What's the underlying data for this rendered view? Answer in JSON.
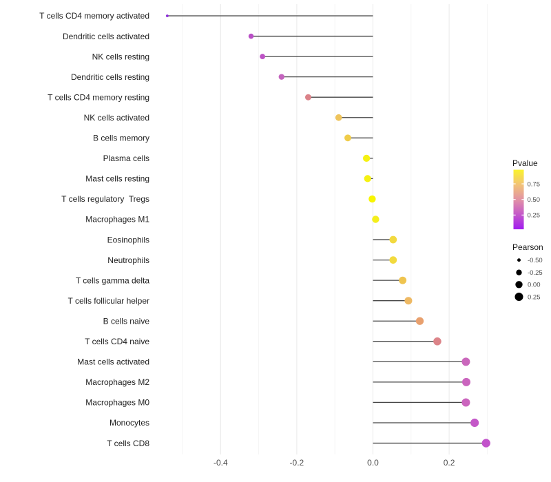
{
  "chart_data": {
    "type": "scatter",
    "style": "horizontal-lollipop",
    "title": "",
    "xlabel": "",
    "ylabel": "",
    "xlim": [
      -0.567,
      0.325
    ],
    "x_ticks": [
      -0.4,
      -0.2,
      0.0,
      0.2
    ],
    "x_tick_labels": [
      "-0.4",
      "-0.2",
      "0.0",
      "0.2"
    ],
    "x_minor_ticks": [
      -0.5,
      -0.3,
      -0.1,
      0.1,
      0.3
    ],
    "grid": true,
    "points": [
      {
        "label": "T cells CD4 memory activated",
        "pearson": -0.54,
        "color": "#8B2BD9"
      },
      {
        "label": "Dendritic cells activated",
        "pearson": -0.32,
        "color": "#B94FC6"
      },
      {
        "label": "NK cells resting",
        "pearson": -0.29,
        "color": "#BD53C5"
      },
      {
        "label": "Dendritic cells resting",
        "pearson": -0.24,
        "color": "#C464BE"
      },
      {
        "label": "T cells CD4 memory resting",
        "pearson": -0.17,
        "color": "#DB8289"
      },
      {
        "label": "NK cells activated",
        "pearson": -0.09,
        "color": "#EFC45C"
      },
      {
        "label": "B cells memory",
        "pearson": -0.066,
        "color": "#F0CC49"
      },
      {
        "label": "Plasma cells",
        "pearson": -0.017,
        "color": "#F5F112"
      },
      {
        "label": "Mast cells resting",
        "pearson": -0.014,
        "color": "#F5F112"
      },
      {
        "label": "T cells regulatory  Tregs",
        "pearson": -0.002,
        "color": "#F8F500"
      },
      {
        "label": "Macrophages M1",
        "pearson": 0.007,
        "color": "#F4EE1C"
      },
      {
        "label": "Eosinophils",
        "pearson": 0.053,
        "color": "#F2D93F"
      },
      {
        "label": "Neutrophils",
        "pearson": 0.053,
        "color": "#F2DA3E"
      },
      {
        "label": "T cells gamma delta",
        "pearson": 0.078,
        "color": "#EFC44F"
      },
      {
        "label": "T cells follicular helper",
        "pearson": 0.093,
        "color": "#EEB964"
      },
      {
        "label": "B cells naive",
        "pearson": 0.123,
        "color": "#E8A06E"
      },
      {
        "label": "T cells CD4 naive",
        "pearson": 0.169,
        "color": "#DC8489"
      },
      {
        "label": "Mast cells activated",
        "pearson": 0.244,
        "color": "#CA67BC"
      },
      {
        "label": "Macrophages M2",
        "pearson": 0.245,
        "color": "#CA65BE"
      },
      {
        "label": "Macrophages M0",
        "pearson": 0.244,
        "color": "#CB65BE"
      },
      {
        "label": "Monocytes",
        "pearson": 0.267,
        "color": "#C457C8"
      },
      {
        "label": "T cells CD8",
        "pearson": 0.297,
        "color": "#C253CB"
      }
    ],
    "legend_pvalue": {
      "title": "Pvalue",
      "tick_labels": [
        "0.75",
        "0.50",
        "0.25"
      ],
      "gradient_stops": [
        {
          "pos": 0.0,
          "color": "#A11CEF"
        },
        {
          "pos": 0.26,
          "color": "#C65BC8"
        },
        {
          "pos": 0.5,
          "color": "#E293A5"
        },
        {
          "pos": 0.75,
          "color": "#F2C377"
        },
        {
          "pos": 1.0,
          "color": "#FAF32C"
        }
      ]
    },
    "legend_pearson": {
      "title": "Pearson",
      "items": [
        {
          "label": "-0.50",
          "value": -0.5
        },
        {
          "label": "-0.25",
          "value": -0.25
        },
        {
          "label": "0.00",
          "value": 0.0
        },
        {
          "label": "0.25",
          "value": 0.25
        }
      ],
      "dot_color": "#000000"
    },
    "colors": {
      "stem": "#454545",
      "grid_major": "#E8E8E8",
      "grid_minor": "#F4F4F4",
      "axis_text": "#4d4d4d",
      "background": "#ffffff"
    }
  }
}
